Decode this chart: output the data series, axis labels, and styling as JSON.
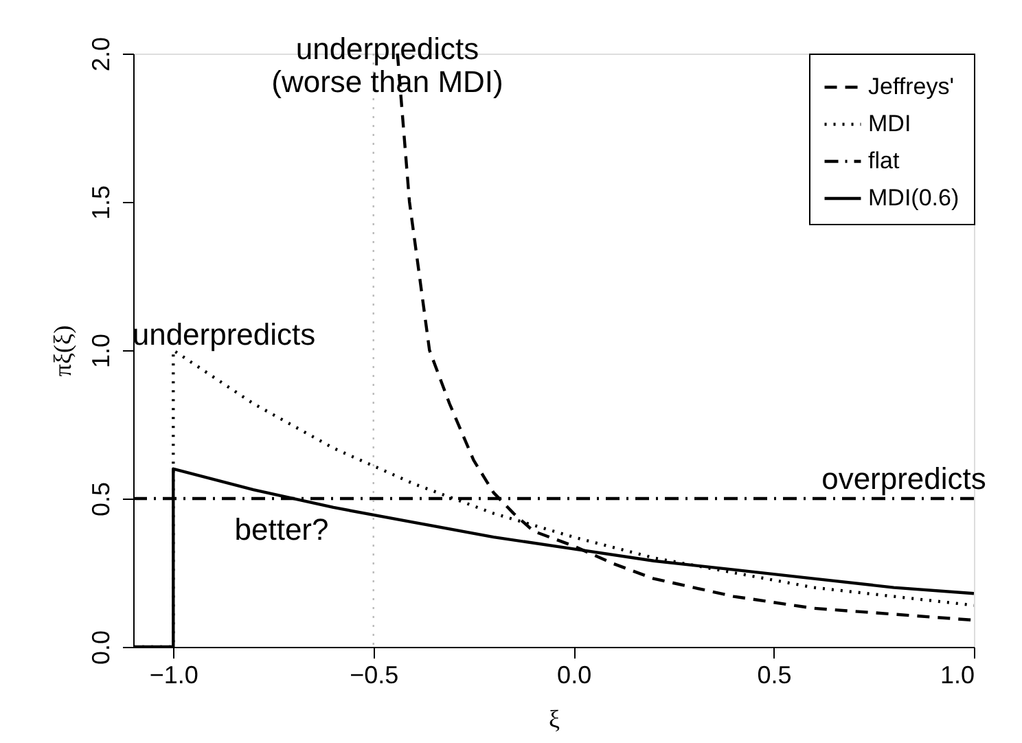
{
  "chart_data": {
    "type": "line",
    "xlabel": "ξ",
    "ylabel": "πξ(ξ)",
    "xlim": [
      -1.1,
      1.0
    ],
    "ylim": [
      0,
      2.0
    ],
    "xticks": [
      {
        "value": -1.0,
        "label": "−1.0"
      },
      {
        "value": -0.5,
        "label": "−0.5"
      },
      {
        "value": 0,
        "label": "0.0"
      },
      {
        "value": 0.5,
        "label": "0.5"
      },
      {
        "value": 1.0,
        "label": "1.0"
      }
    ],
    "yticks": [
      {
        "value": 0,
        "label": "0.0"
      },
      0.5,
      {
        "value": 1.0,
        "label": "1.0"
      },
      1.5,
      {
        "value": 2.0,
        "label": "2.0"
      }
    ],
    "grid": false,
    "legend": "top right",
    "marker": "none",
    "series": [
      {
        "name": "Jeffreys'",
        "color": "#000000",
        "line_style": "dashed",
        "x": [
          -0.44,
          -0.41,
          -0.38,
          -0.36,
          -0.31,
          -0.25,
          -0.2,
          -0.15,
          -0.1,
          0,
          0.1,
          0.2,
          0.3,
          0.4,
          0.5,
          0.6,
          0.7,
          0.8,
          0.9,
          1.0
        ],
        "values": [
          2.0,
          1.5,
          1.2,
          1.0,
          0.82,
          0.63,
          0.52,
          0.45,
          0.39,
          0.34,
          0.28,
          0.23,
          0.2,
          0.17,
          0.15,
          0.13,
          0.12,
          0.11,
          0.1,
          0.09
        ]
      },
      {
        "name": "MDI",
        "color": "#000000",
        "line_style": "dotted",
        "x": [
          -1.1,
          -1.0,
          -1.0,
          -0.8,
          -0.6,
          -0.4,
          -0.2,
          0,
          0.2,
          0.4,
          0.6,
          0.8,
          1.0
        ],
        "values": [
          0,
          0,
          1.0,
          0.82,
          0.67,
          0.55,
          0.45,
          0.37,
          0.3,
          0.25,
          0.2,
          0.17,
          0.14
        ]
      },
      {
        "name": "flat",
        "color": "#000000",
        "line_style": "dashdot",
        "x": [
          -1.1,
          1.0
        ],
        "values": [
          0.5,
          0.5
        ]
      },
      {
        "name": "MDI(0.6)",
        "color": "#000000",
        "line_style": "solid",
        "x": [
          -1.1,
          -1.0,
          -1.0,
          -0.8,
          -0.6,
          -0.4,
          -0.2,
          0,
          0.2,
          0.4,
          0.6,
          0.8,
          1.0
        ],
        "values": [
          0,
          0,
          0.6,
          0.53,
          0.47,
          0.42,
          0.37,
          0.33,
          0.29,
          0.26,
          0.23,
          0.2,
          0.18
        ]
      }
    ],
    "ref_lines": [
      {
        "axis": "x",
        "value": -0.5,
        "color": "#bbbbbb",
        "line_style": "dotted"
      }
    ],
    "annotations": [
      "underpredicts\n(worse than MDI)",
      "underpredicts",
      "overpredicts",
      "better?"
    ]
  }
}
